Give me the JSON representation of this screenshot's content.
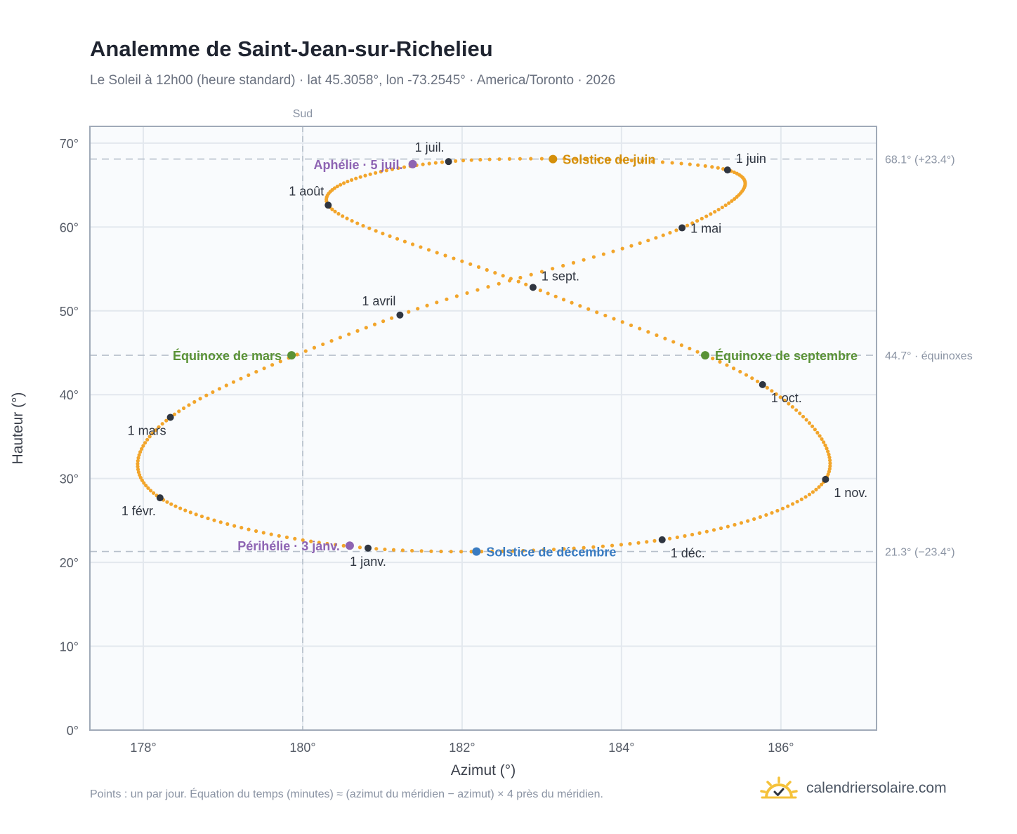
{
  "title": "Analemme de Saint-Jean-sur-Richelieu",
  "subtitle": "Le Soleil à 12h00 (heure standard) · lat 45.3058°, lon -73.2545° · America/Toronto · 2026",
  "footnote": "Points : un par jour. Équation du temps (minutes) ≈ (azimut du méridien − azimut) × 4 près du méridien.",
  "brand": {
    "name": "calendriersolaire.com",
    "icon": "sun-check-icon"
  },
  "colors": {
    "curve": "#f2a52b",
    "monthDot": "#2f3540",
    "equinox": "#5a9236",
    "juneSolstice": "#d48f0a",
    "decSolstice": "#3a7cc2",
    "aphelion": "#8e64b3",
    "grid": "#e3e8ee",
    "frame": "#a0aab8",
    "refLine": "#b7c0cb"
  },
  "chart_data": {
    "type": "scatter",
    "xlabel": "Azimut (°)",
    "ylabel": "Hauteur (°)",
    "xlim": [
      177.33,
      187.2
    ],
    "ylim": [
      0,
      72
    ],
    "xticks": [
      178,
      180,
      182,
      184,
      186
    ],
    "yticks": [
      0,
      10,
      20,
      30,
      40,
      50,
      60,
      70
    ],
    "xtick_labels": [
      "178°",
      "180°",
      "182°",
      "184°",
      "186°"
    ],
    "ytick_labels": [
      "0°",
      "10°",
      "20°",
      "30°",
      "40°",
      "50°",
      "60°",
      "70°"
    ],
    "grid": true,
    "south_line": {
      "x": 180,
      "label": "Sud"
    },
    "reference_lines": [
      {
        "y": 68.1,
        "label": "68.1° (+23.4°)"
      },
      {
        "y": 44.7,
        "label": "44.7° · équinoxes"
      },
      {
        "y": 21.3,
        "label": "21.3° (−23.4°)"
      }
    ],
    "month_markers": [
      {
        "label": "1 janv.",
        "x": 180.82,
        "y": 21.7,
        "pos": "below"
      },
      {
        "label": "1 févr.",
        "x": 178.21,
        "y": 27.7,
        "pos": "below-left"
      },
      {
        "label": "1 mars",
        "x": 178.34,
        "y": 37.3,
        "pos": "below-left"
      },
      {
        "label": "1 avril",
        "x": 181.22,
        "y": 49.5,
        "pos": "above-left"
      },
      {
        "label": "1 mai",
        "x": 184.76,
        "y": 59.9,
        "pos": "right"
      },
      {
        "label": "1 juin",
        "x": 185.33,
        "y": 66.8,
        "pos": "above-right"
      },
      {
        "label": "1 juil.",
        "x": 181.83,
        "y": 67.8,
        "pos": "above-left"
      },
      {
        "label": "1 août",
        "x": 180.32,
        "y": 62.6,
        "pos": "above-left"
      },
      {
        "label": "1 sept.",
        "x": 182.89,
        "y": 52.8,
        "pos": "above-right"
      },
      {
        "label": "1 oct.",
        "x": 185.77,
        "y": 41.2,
        "pos": "below-right"
      },
      {
        "label": "1 nov.",
        "x": 186.56,
        "y": 29.9,
        "pos": "below-right"
      },
      {
        "label": "1 déc.",
        "x": 184.51,
        "y": 22.7,
        "pos": "below-right"
      }
    ],
    "events": [
      {
        "label": "Solstice de juin",
        "x": 183.14,
        "y": 68.1,
        "color": "juneSolstice",
        "pos": "right"
      },
      {
        "label": "Aphélie · 5 juil.",
        "x": 181.38,
        "y": 67.5,
        "color": "aphelion",
        "pos": "left"
      },
      {
        "label": "Équinoxe de mars",
        "x": 179.86,
        "y": 44.7,
        "color": "equinox",
        "pos": "left"
      },
      {
        "label": "Équinoxe de septembre",
        "x": 185.05,
        "y": 44.7,
        "color": "equinox",
        "pos": "right"
      },
      {
        "label": "Périhélie · 3 janv.",
        "x": 180.59,
        "y": 22.0,
        "color": "aphelion",
        "pos": "left"
      },
      {
        "label": "Solstice de décembre",
        "x": 182.18,
        "y": 21.3,
        "color": "decSolstice",
        "pos": "right"
      }
    ],
    "daily_points_note": "365 points, one per day",
    "anchors": [
      {
        "x": 180.82,
        "y": 21.7
      },
      {
        "x": 178.21,
        "y": 27.7
      },
      {
        "x": 178.34,
        "y": 37.3
      },
      {
        "x": 181.22,
        "y": 49.5
      },
      {
        "x": 184.76,
        "y": 59.9
      },
      {
        "x": 185.33,
        "y": 66.8
      },
      {
        "x": 181.83,
        "y": 67.8
      },
      {
        "x": 180.32,
        "y": 62.6
      },
      {
        "x": 182.89,
        "y": 52.8
      },
      {
        "x": 185.77,
        "y": 41.2
      },
      {
        "x": 186.56,
        "y": 29.9
      },
      {
        "x": 184.51,
        "y": 22.7
      }
    ],
    "anchor_days": [
      0,
      31,
      59,
      90,
      120,
      151,
      181,
      212,
      243,
      273,
      304,
      334,
      365
    ]
  }
}
